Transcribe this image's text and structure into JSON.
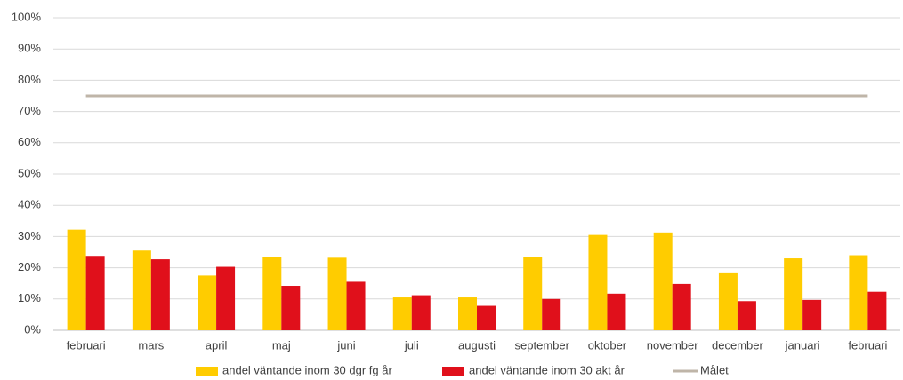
{
  "chart_data": {
    "type": "bar",
    "categories": [
      "februari",
      "mars",
      "april",
      "maj",
      "juni",
      "juli",
      "augusti",
      "september",
      "oktober",
      "november",
      "december",
      "januari",
      "februari"
    ],
    "series": [
      {
        "name": "andel väntande inom 30 dgr fg år",
        "color": "#ffcc00",
        "type": "bar",
        "values": [
          32.2,
          25.5,
          17.5,
          23.5,
          23.2,
          10.5,
          10.5,
          23.3,
          30.5,
          31.3,
          18.5,
          23,
          24
        ]
      },
      {
        "name": "andel väntande inom 30 akt år",
        "color": "#e0101b",
        "type": "bar",
        "values": [
          23.8,
          22.7,
          20.3,
          14.2,
          15.5,
          11.2,
          7.8,
          10,
          11.7,
          14.8,
          9.3,
          9.7,
          12.3
        ]
      },
      {
        "name": "Målet",
        "color": "#bfb5a8",
        "type": "line",
        "values": [
          75,
          75,
          75,
          75,
          75,
          75,
          75,
          75,
          75,
          75,
          75,
          75,
          75
        ]
      }
    ],
    "ylim": [
      0,
      100
    ],
    "yticks": [
      {
        "value": 0,
        "label": "0%"
      },
      {
        "value": 10,
        "label": "10%"
      },
      {
        "value": 20,
        "label": "20%"
      },
      {
        "value": 30,
        "label": "30%"
      },
      {
        "value": 40,
        "label": "40%"
      },
      {
        "value": 50,
        "label": "50%"
      },
      {
        "value": 60,
        "label": "60%"
      },
      {
        "value": 70,
        "label": "70%"
      },
      {
        "value": 80,
        "label": "80%"
      },
      {
        "value": 90,
        "label": "90%"
      },
      {
        "value": 100,
        "label": "100%"
      }
    ],
    "grid": true,
    "legend": "bottom"
  }
}
